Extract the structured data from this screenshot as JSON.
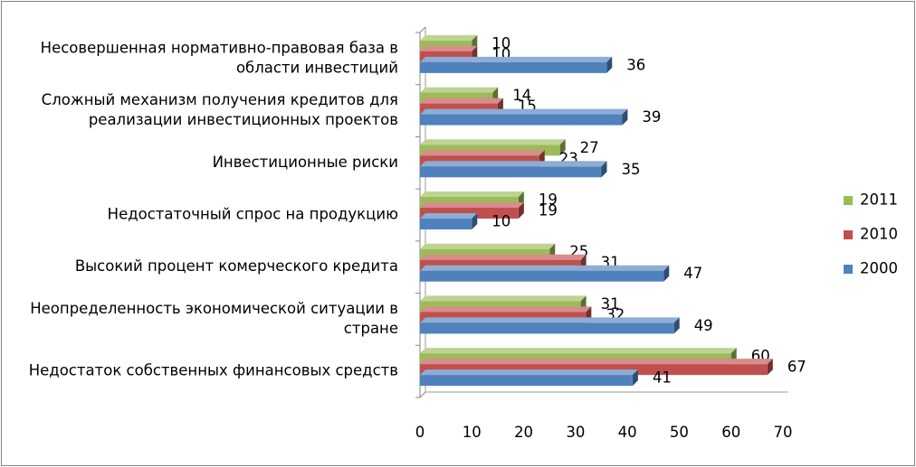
{
  "chart_data": {
    "type": "bar",
    "orientation": "horizontal",
    "style": "3d-clustered",
    "categories": [
      [
        "Несовершенная нормативно-правовая база в",
        "области инвестиций"
      ],
      [
        "Сложный механизм  получения кредитов для",
        "реализации инвестиционных  проектов"
      ],
      [
        "Инвестиционные риски"
      ],
      [
        "Недостаточный спрос на продукцию"
      ],
      [
        "Высокий процент комерческого кредита"
      ],
      [
        "Неопределенность экономической ситуации в",
        "стране"
      ],
      [
        "Недостаток собственных финансовых средств"
      ]
    ],
    "series": [
      {
        "name": "2011",
        "color": "#9BBB59",
        "values": [
          10,
          14,
          27,
          19,
          25,
          31,
          60
        ]
      },
      {
        "name": "2010",
        "color": "#C0504D",
        "values": [
          10,
          15,
          23,
          19,
          31,
          32,
          67
        ]
      },
      {
        "name": "2000",
        "color": "#4F81BD",
        "values": [
          36,
          39,
          35,
          10,
          47,
          49,
          41
        ]
      }
    ],
    "xlim": [
      0,
      70
    ],
    "ticks": [
      "0",
      "10",
      "20",
      "30",
      "40",
      "50",
      "60",
      "70"
    ],
    "legend": [
      "2011",
      "2010",
      "2000"
    ],
    "legend_position": "right",
    "grid": false,
    "data_labels": true
  }
}
